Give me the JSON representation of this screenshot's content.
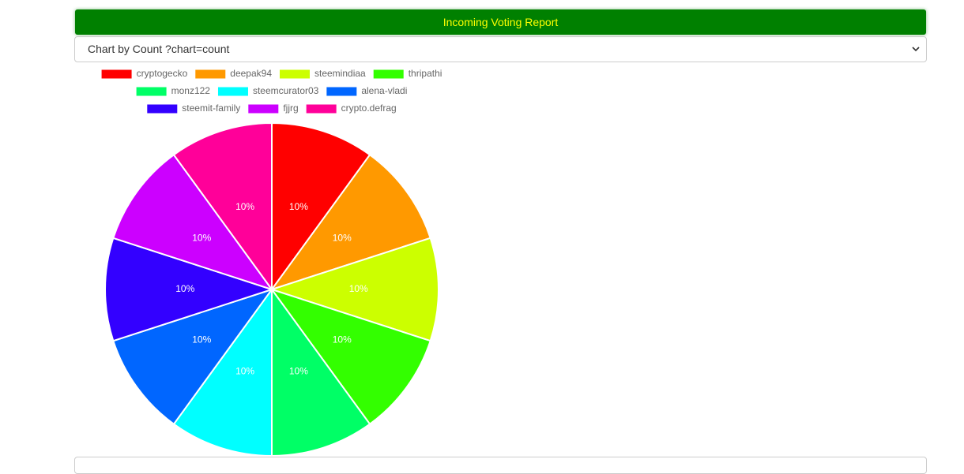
{
  "header": {
    "title": "Incoming Voting Report"
  },
  "select": {
    "label": "Chart by Count ?chart=count"
  },
  "chart_data": {
    "type": "pie",
    "categories": [
      "cryptogecko",
      "deepak94",
      "steemindiaa",
      "thripathi",
      "monz122",
      "steemcurator03",
      "alena-vladi",
      "steemit-family",
      "fjjrg",
      "crypto.defrag"
    ],
    "values": [
      10,
      10,
      10,
      10,
      10,
      10,
      10,
      10,
      10,
      10
    ],
    "value_labels": [
      "10%",
      "10%",
      "10%",
      "10%",
      "10%",
      "10%",
      "10%",
      "10%",
      "10%",
      "10%"
    ],
    "colors": [
      "#ff0000",
      "#ff9900",
      "#ccff00",
      "#33ff00",
      "#00ff66",
      "#00ffff",
      "#0066ff",
      "#3300ff",
      "#cc00ff",
      "#ff0099"
    ]
  }
}
